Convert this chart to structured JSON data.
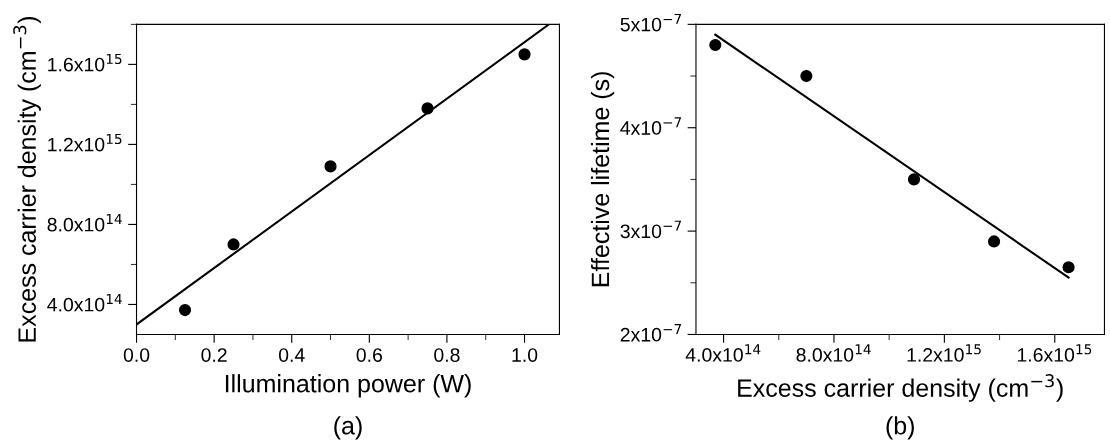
{
  "chart_data": [
    {
      "type": "scatter",
      "xlabel": "Illumination power (W)",
      "ylabel": "Excess carrier density (cm$^{−3}$)",
      "annotations": [
        "(a)"
      ],
      "grid": false,
      "legend": false,
      "xlim": [
        0,
        1.09
      ],
      "xticks": [
        {
          "value": 0,
          "label": "0.0"
        },
        {
          "value": 0.2,
          "label": "0.2"
        },
        {
          "value": 0.4,
          "label": "0.4"
        },
        {
          "value": 0.6,
          "label": "0.6"
        },
        {
          "value": 0.8,
          "label": "0.8"
        },
        {
          "value": 1.0,
          "label": "1.0"
        }
      ],
      "ylim": [
        250000000000000.0,
        1800000000000000.0
      ],
      "yticks": [
        {
          "value": 400000000000000.0,
          "label": "4.0x10$^{14}$"
        },
        {
          "value": 800000000000000.0,
          "label": "8.0x10$^{14}$"
        },
        {
          "value": 1200000000000000.0,
          "label": "1.2x10$^{15}$"
        },
        {
          "value": 1600000000000000.0,
          "label": "1.6x10$^{15}$"
        }
      ],
      "series": [
        {
          "color": "#000000",
          "marker": "circle",
          "x": [
            0.125,
            0.25,
            0.5,
            0.75,
            1.0
          ],
          "values": [
            372000000000000.0,
            700000000000000.0,
            1090000000000000.0,
            1380000000000000.0,
            1650000000000000.0
          ]
        },
        {
          "type": "line",
          "color": "#000000",
          "line_style": "solid",
          "x": [
            0,
            1.063
          ],
          "values": [
            300000000000000.0,
            1800000000000000.0
          ]
        }
      ]
    },
    {
      "type": "scatter",
      "xlabel": "Excess carrier density (cm$^{−3}$)",
      "ylabel": "Effective lifetime (s)",
      "annotations": [
        "(b)"
      ],
      "grid": false,
      "legend": false,
      "xlim": [
        300000000000000.0,
        1780000000000000.0
      ],
      "xticks": [
        {
          "value": 400000000000000.0,
          "label": "4.0x10$^{14}$"
        },
        {
          "value": 800000000000000.0,
          "label": "8.0x10$^{14}$"
        },
        {
          "value": 1200000000000000.0,
          "label": "1.2x10$^{15}$"
        },
        {
          "value": 1600000000000000.0,
          "label": "1.6x10$^{15}$"
        }
      ],
      "ylim": [
        2e-07,
        5e-07
      ],
      "yticks": [
        {
          "value": 2e-07,
          "label": "2x10$^{−7}$"
        },
        {
          "value": 3e-07,
          "label": "3x10$^{−7}$"
        },
        {
          "value": 4e-07,
          "label": "4x10$^{−7}$"
        },
        {
          "value": 5e-07,
          "label": "5x10$^{−7}$"
        }
      ],
      "series": [
        {
          "color": "#000000",
          "marker": "circle",
          "x": [
            370000000000000.0,
            700000000000000.0,
            1090000000000000.0,
            1380000000000000.0,
            1650000000000000.0
          ],
          "values": [
            4.8e-07,
            4.5e-07,
            3.5e-07,
            2.9e-07,
            2.65e-07
          ]
        },
        {
          "type": "line",
          "color": "#000000",
          "line_style": "solid",
          "x": [
            370000000000000.0,
            1650000000000000.0
          ],
          "values": [
            4.9e-07,
            2.55e-07
          ]
        }
      ]
    }
  ]
}
